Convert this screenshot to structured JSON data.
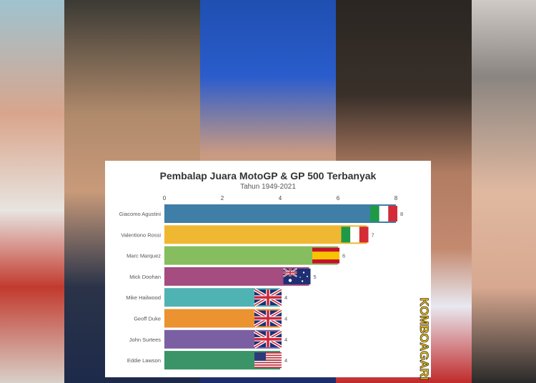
{
  "background_description_colors": {
    "card": "#ffffff"
  },
  "watermark": "KOMBOAGARI",
  "chart_data": {
    "type": "bar",
    "orientation": "horizontal",
    "title": "Pembalap Juara MotoGP & GP 500 Terbanyak",
    "subtitle": "Tahun 1949-2021",
    "xlim": [
      0,
      8
    ],
    "xticks": [
      "0",
      "2",
      "4",
      "6",
      "8"
    ],
    "grid": false,
    "categories": [
      "Giacomo Agustini",
      "Valentiono Rossi",
      "Marc Marquez",
      "Mick Doohan",
      "Mike Hailwood",
      "Geoff Duke",
      "John Surtees",
      "Eddie Lawson"
    ],
    "values": [
      8,
      7,
      6,
      5,
      4,
      4,
      4,
      4
    ],
    "flags": [
      "italy",
      "italy",
      "spain",
      "australia",
      "uk",
      "uk",
      "uk",
      "usa"
    ],
    "colors": [
      "#3f7ea6",
      "#f0b832",
      "#86bd5e",
      "#a54c80",
      "#4fb3b3",
      "#ea9330",
      "#7b5fa3",
      "#3a9467"
    ]
  }
}
